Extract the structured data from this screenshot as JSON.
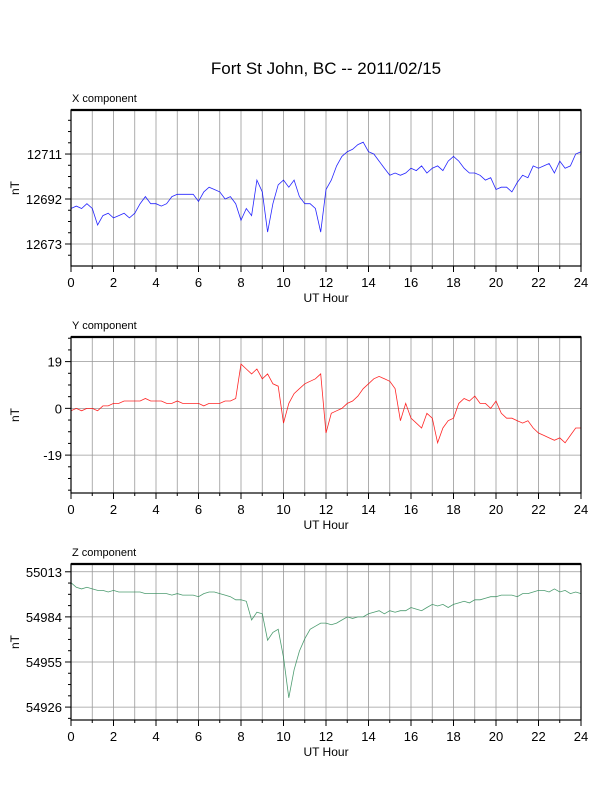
{
  "title": "Fort St John, BC -- 2011/02/15",
  "chart_data": [
    {
      "type": "line",
      "panel_title": "X component",
      "xlabel": "UT Hour",
      "ylabel": "nT",
      "xlim": [
        0,
        24
      ],
      "ylim": [
        12663.7,
        12729.6
      ],
      "xticks": [
        0,
        2,
        4,
        6,
        8,
        10,
        12,
        14,
        16,
        18,
        20,
        22,
        24
      ],
      "yticks": [
        12673,
        12692,
        12711
      ],
      "grid": true,
      "color": "#0000ff",
      "x_step_hours": 0.25,
      "values": [
        12688,
        12689,
        12688,
        12690,
        12688,
        12681,
        12685,
        12686,
        12684,
        12685,
        12686,
        12684,
        12686,
        12690,
        12693,
        12690,
        12690,
        12689,
        12690,
        12693,
        12694,
        12694,
        12694,
        12694,
        12691,
        12695,
        12697,
        12696,
        12695,
        12692,
        12693,
        12690,
        12683,
        12688,
        12685,
        12700,
        12695,
        12678,
        12690,
        12698,
        12700,
        12697,
        12700,
        12693,
        12690,
        12690,
        12688,
        12678,
        12696,
        12700,
        12706,
        12710,
        12712,
        12713,
        12715,
        12716,
        12712,
        12711,
        12708,
        12705,
        12702,
        12703,
        12702,
        12703,
        12705,
        12704,
        12706,
        12703,
        12705,
        12706,
        12704,
        12708,
        12710,
        12708,
        12705,
        12703,
        12703,
        12702,
        12700,
        12701,
        12696,
        12697,
        12697,
        12695,
        12699,
        12702,
        12701,
        12706,
        12705,
        12706,
        12707,
        12703,
        12708,
        12705,
        12706,
        12711,
        12712
      ]
    },
    {
      "type": "line",
      "panel_title": "Y component",
      "xlabel": "UT Hour",
      "ylabel": "nT",
      "xlim": [
        0,
        24
      ],
      "ylim": [
        -34.4,
        29
      ],
      "xticks": [
        0,
        2,
        4,
        6,
        8,
        10,
        12,
        14,
        16,
        18,
        20,
        22,
        24
      ],
      "yticks": [
        -19,
        0,
        19
      ],
      "grid": true,
      "color": "#ff0000",
      "x_step_hours": 0.25,
      "values": [
        -1,
        0,
        -1,
        0,
        0,
        -1,
        1,
        1,
        2,
        2,
        3,
        3,
        3,
        3,
        4,
        3,
        3,
        3,
        2,
        2,
        3,
        2,
        2,
        2,
        2,
        1,
        2,
        2,
        2,
        3,
        3,
        4,
        18,
        16,
        14,
        16,
        12,
        14,
        10,
        9,
        -6,
        2,
        6,
        8,
        10,
        11,
        12,
        14,
        -10,
        -2,
        -1,
        0,
        2,
        3,
        5,
        8,
        10,
        12,
        13,
        12,
        11,
        8,
        -5,
        2,
        -4,
        -6,
        -8,
        -2,
        -4,
        -14,
        -8,
        -5,
        -4,
        2,
        4,
        3,
        5,
        2,
        2,
        0,
        3,
        -2,
        -4,
        -4,
        -5,
        -6,
        -5,
        -8,
        -10,
        -11,
        -12,
        -13,
        -12,
        -14,
        -11,
        -8,
        -8
      ]
    },
    {
      "type": "line",
      "panel_title": "Z component",
      "xlabel": "UT Hour",
      "ylabel": "nT",
      "xlim": [
        0,
        24
      ],
      "ylim": [
        54917.7,
        55018
      ],
      "xticks": [
        0,
        2,
        4,
        6,
        8,
        10,
        12,
        14,
        16,
        18,
        20,
        22,
        24
      ],
      "yticks": [
        54926,
        54955,
        54984,
        55013
      ],
      "grid": true,
      "color": "#2e8b57",
      "x_step_hours": 0.25,
      "values": [
        55006,
        55003,
        55002,
        55003,
        55002,
        55001,
        55001,
        55000,
        55001,
        55000,
        55000,
        55000,
        55000,
        55000,
        54999,
        54999,
        54999,
        54999,
        54999,
        54998,
        54999,
        54998,
        54998,
        54998,
        54997,
        54999,
        55000,
        55000,
        54999,
        54998,
        54997,
        54995,
        54995,
        54994,
        54982,
        54987,
        54986,
        54969,
        54974,
        54976,
        54958,
        54932,
        54950,
        54962,
        54970,
        54976,
        54978,
        54980,
        54980,
        54979,
        54980,
        54982,
        54984,
        54983,
        54984,
        54984,
        54986,
        54987,
        54988,
        54986,
        54988,
        54987,
        54988,
        54988,
        54990,
        54989,
        54988,
        54990,
        54992,
        54991,
        54992,
        54990,
        54992,
        54993,
        54994,
        54993,
        54995,
        54995,
        54996,
        54997,
        54997,
        54998,
        54998,
        54998,
        54997,
        54999,
        54999,
        55000,
        55001,
        55001,
        55000,
        55002,
        55000,
        55001,
        54999,
        55000,
        54999
      ]
    }
  ]
}
